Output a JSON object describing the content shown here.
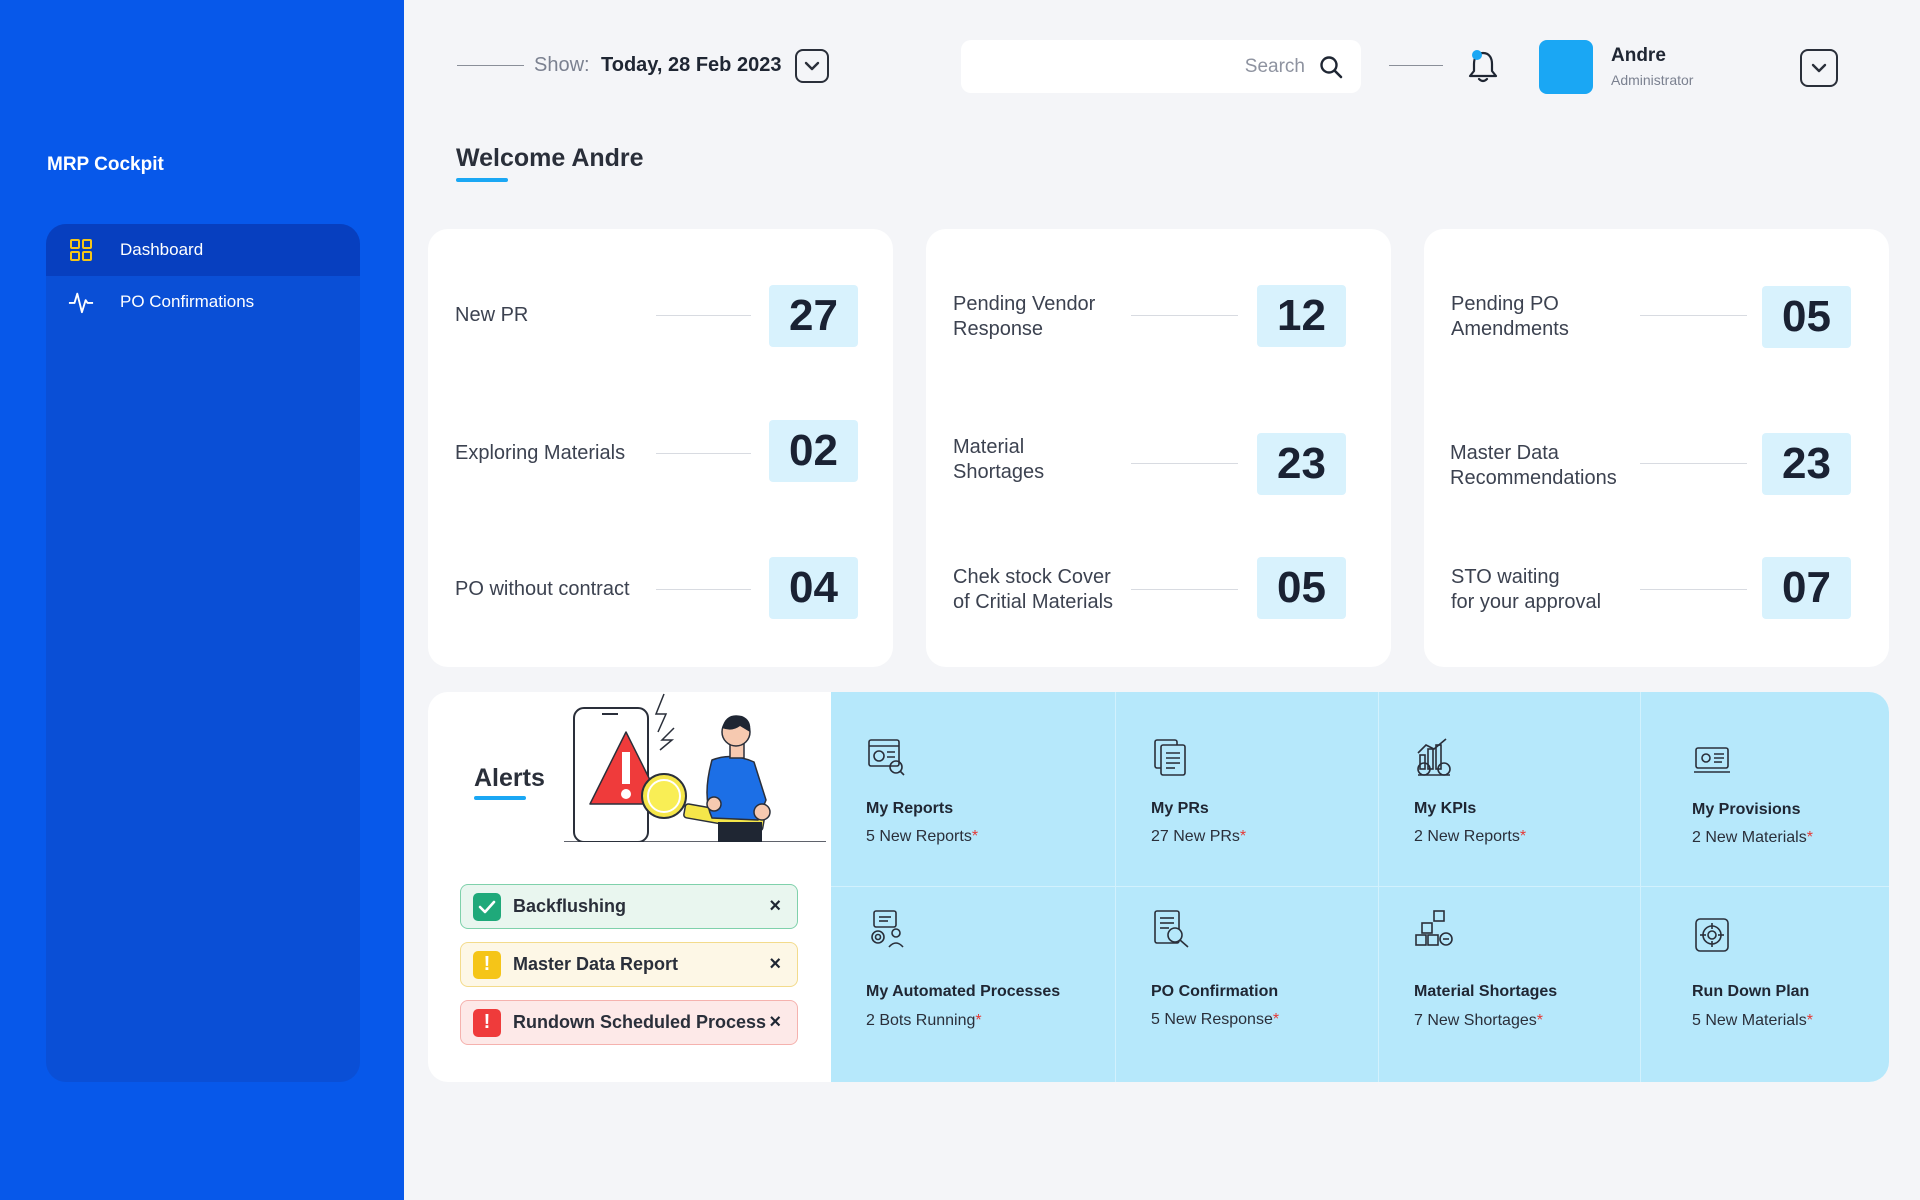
{
  "sidebar": {
    "brand": "MRP Cockpit",
    "items": [
      {
        "label": "Dashboard",
        "icon": "grid-icon",
        "active": true
      },
      {
        "label": "PO Confirmations",
        "icon": "pulse-icon",
        "active": false
      }
    ]
  },
  "topbar": {
    "show_label": "Show:",
    "date": "Today, 28 Feb 2023",
    "search_placeholder": "Search",
    "user": {
      "name": "Andre",
      "role": "Administrator"
    }
  },
  "welcome": "Welcome Andre",
  "cards": [
    {
      "stats": [
        {
          "label": "New PR",
          "value": "27"
        },
        {
          "label": "Exploring Materials",
          "value": "02"
        },
        {
          "label": "PO without contract",
          "value": "04"
        }
      ]
    },
    {
      "stats": [
        {
          "label": "Pending Vendor\nResponse",
          "value": "12"
        },
        {
          "label": "Material\nShortages",
          "value": "23"
        },
        {
          "label": "Chek stock Cover\nof Critial Materials",
          "value": "05"
        }
      ]
    },
    {
      "stats": [
        {
          "label": "Pending PO\nAmendments",
          "value": "05"
        },
        {
          "label": "Master Data\nRecommendations",
          "value": "23"
        },
        {
          "label": "STO waiting\nfor your approval",
          "value": "07"
        }
      ]
    }
  ],
  "alerts": {
    "title": "Alerts",
    "items": [
      {
        "label": "Backflushing",
        "type": "success",
        "close": "×"
      },
      {
        "label": "Master Data Report",
        "type": "warning",
        "close": "×"
      },
      {
        "label": "Rundown Scheduled Process",
        "type": "error",
        "close": "×"
      }
    ]
  },
  "tiles": [
    {
      "name": "My Reports",
      "sub": "5 New Reports",
      "icon": "report-icon"
    },
    {
      "name": "My PRs",
      "sub": "27 New PRs",
      "icon": "documents-icon"
    },
    {
      "name": "My KPIs",
      "sub": "2 New Reports",
      "icon": "kpi-chart-icon"
    },
    {
      "name": "My Provisions",
      "sub": "2 New Materials",
      "icon": "laptop-settings-icon"
    },
    {
      "name": "My Automated Processes",
      "sub": "2 Bots Running",
      "icon": "gear-user-icon"
    },
    {
      "name": "PO Confirmation",
      "sub": "5  New Response",
      "icon": "document-search-icon"
    },
    {
      "name": "Material Shortages",
      "sub": "7 New Shortages",
      "icon": "boxes-icon"
    },
    {
      "name": "Run Down Plan",
      "sub": "5 New Materials",
      "icon": "target-cycle-icon"
    }
  ],
  "colors": {
    "sidebar": "#0758ea",
    "accent": "#1aa7f4",
    "tile_bg": "#b6e8fb",
    "stat_bg": "#d8f2fd",
    "success": "#1fa97a",
    "warning": "#f5c518",
    "error": "#ef3b3b"
  }
}
